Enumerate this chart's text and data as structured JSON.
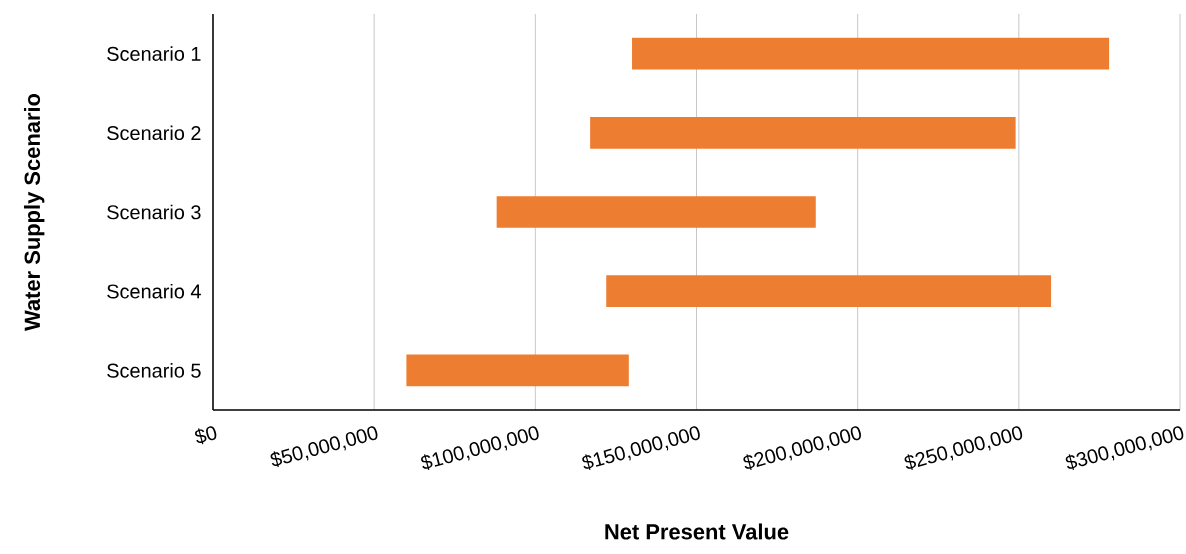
{
  "chart_data": {
    "type": "bar",
    "orientation": "horizontal",
    "xlabel": "Net Present Value",
    "ylabel": "Water Supply Scenario",
    "categories": [
      "Scenario 1",
      "Scenario 2",
      "Scenario 3",
      "Scenario 4",
      "Scenario 5"
    ],
    "base": [
      130000000,
      117000000,
      88000000,
      122000000,
      60000000
    ],
    "values": [
      148000000,
      132000000,
      99000000,
      138000000,
      69000000
    ],
    "color": "#ed7d31",
    "xlim": [
      0,
      300000000
    ],
    "xticks": [
      {
        "value": 0,
        "label": "$0"
      },
      {
        "value": 50000000,
        "label": "$50,000,000"
      },
      {
        "value": 100000000,
        "label": "$100,000,000"
      },
      {
        "value": 150000000,
        "label": "$150,000,000"
      },
      {
        "value": 200000000,
        "label": "$200,000,000"
      },
      {
        "value": 250000000,
        "label": "$250,000,000"
      },
      {
        "value": 300000000,
        "label": "$300,000,000"
      }
    ],
    "grid": "x"
  }
}
